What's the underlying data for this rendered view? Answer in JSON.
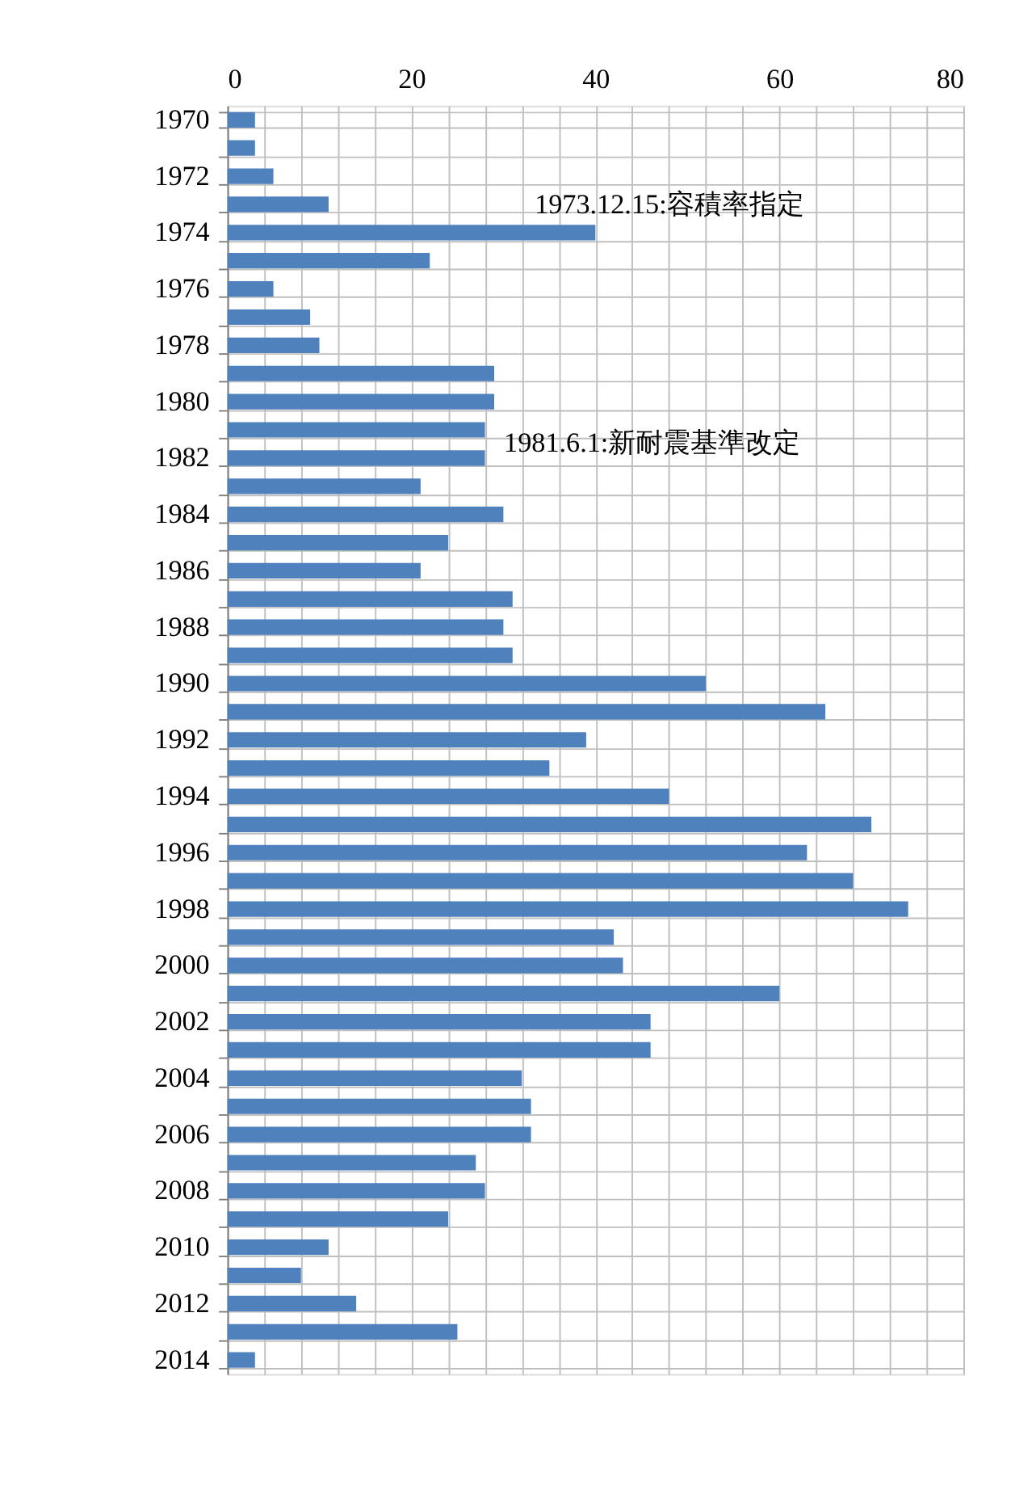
{
  "chart_data": {
    "type": "bar",
    "orientation": "horizontal",
    "categories": [
      "1970",
      null,
      "1972",
      null,
      "1974",
      null,
      "1976",
      null,
      "1978",
      null,
      "1980",
      null,
      "1982",
      null,
      "1984",
      null,
      "1986",
      null,
      "1988",
      null,
      "1990",
      null,
      "1992",
      null,
      "1994",
      null,
      "1996",
      null,
      "1998",
      null,
      "2000",
      null,
      "2002",
      null,
      "2004",
      null,
      "2006",
      null,
      "2008",
      null,
      "2010",
      null,
      "2012",
      null,
      "2014"
    ],
    "values": [
      3,
      3,
      5,
      11,
      40,
      22,
      5,
      9,
      10,
      29,
      29,
      28,
      28,
      21,
      30,
      24,
      21,
      31,
      30,
      31,
      52,
      65,
      39,
      35,
      48,
      70,
      63,
      68,
      74,
      42,
      43,
      60,
      46,
      46,
      32,
      33,
      33,
      27,
      28,
      24,
      11,
      8,
      14,
      25,
      3
    ],
    "color": "#4f81bd",
    "xlim": [
      0,
      80
    ],
    "xticks": [
      0,
      {
        "value": 4,
        "label": null
      },
      {
        "value": 8,
        "label": null
      },
      {
        "value": 12,
        "label": null
      },
      {
        "value": 16,
        "label": null
      },
      20,
      {
        "value": 24,
        "label": null
      },
      {
        "value": 28,
        "label": null
      },
      {
        "value": 32,
        "label": null
      },
      {
        "value": 36,
        "label": null
      },
      40,
      {
        "value": 44,
        "label": null
      },
      {
        "value": 48,
        "label": null
      },
      {
        "value": 52,
        "label": null
      },
      {
        "value": 56,
        "label": null
      },
      60,
      {
        "value": 64,
        "label": null
      },
      {
        "value": 68,
        "label": null
      },
      {
        "value": 72,
        "label": null
      },
      {
        "value": 76,
        "label": null
      },
      80
    ],
    "grid": true,
    "annotations": [
      "1973.12.15:容積率指定",
      "1981.6.1:新耐震基準改定"
    ]
  }
}
